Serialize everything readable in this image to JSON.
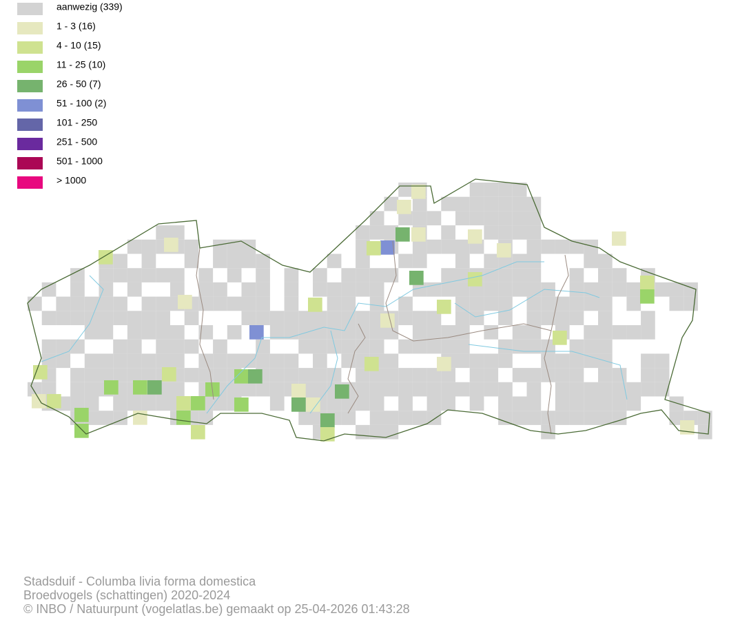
{
  "legend": [
    {
      "label": "aanwezig (339)",
      "color": "#d3d3d3"
    },
    {
      "label": "1 - 3 (16)",
      "color": "#e6e8bf"
    },
    {
      "label": "4 - 10 (15)",
      "color": "#cfe290"
    },
    {
      "label": "11 - 25 (10)",
      "color": "#9ad469"
    },
    {
      "label": "26 - 50 (7)",
      "color": "#76b36e"
    },
    {
      "label": "51 - 100 (2)",
      "color": "#7f90d4"
    },
    {
      "label": "101 - 250",
      "color": "#6466a8"
    },
    {
      "label": "251 - 500",
      "color": "#6a2a9e"
    },
    {
      "label": "501 - 1000",
      "color": "#ab0755"
    },
    {
      "label": "> 1000",
      "color": "#e8087f"
    }
  ],
  "footer": {
    "species": "Stadsduif - Columba livia forma domestica",
    "dataset": "Broedvogels (schattingen) 2020-2024",
    "credit": "© INBO / Natuurpunt (vogelatlas.be) gemaakt op 25-04-2026 01:43:28"
  }
}
